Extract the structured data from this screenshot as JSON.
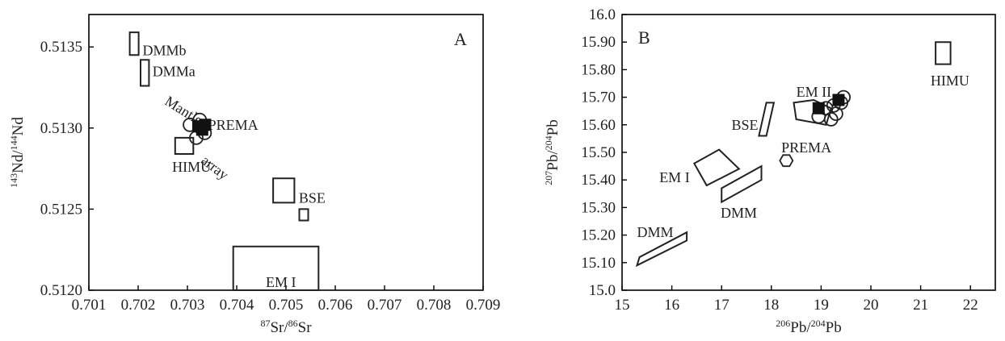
{
  "chart_data": [
    {
      "type": "scatter",
      "panel_label": "A",
      "xlabel": {
        "sup1": "87",
        "base1": "Sr/",
        "sup2": "86",
        "base2": "Sr"
      },
      "ylabel": {
        "sup1": "143",
        "base1": "Nd/",
        "sup2": "144",
        "base2": "Nd"
      },
      "xlim": [
        0.701,
        0.709
      ],
      "ylim": [
        0.512,
        0.5137
      ],
      "xticks": [
        "0.701",
        "0.702",
        "0.703",
        "0.704",
        "0.705",
        "0.706",
        "0.707",
        "0.708",
        "0.709"
      ],
      "yticks": [
        {
          "v": 0.512,
          "label": "0.5120"
        },
        {
          "v": 0.5125,
          "label": "0.5125"
        },
        {
          "v": 0.513,
          "label": "0.5130"
        },
        {
          "v": 0.5135,
          "label": "0.5135"
        }
      ],
      "fields": [
        {
          "name": "DMMb",
          "points": [
            [
              0.70183,
              0.51345
            ],
            [
              0.70201,
              0.51345
            ],
            [
              0.70201,
              0.51359
            ],
            [
              0.70183,
              0.51359
            ]
          ],
          "label": "DMMb",
          "label_at": [
            0.70209,
            0.51348
          ]
        },
        {
          "name": "DMMa",
          "points": [
            [
              0.70205,
              0.51326
            ],
            [
              0.70222,
              0.51326
            ],
            [
              0.70222,
              0.51342
            ],
            [
              0.70205,
              0.51342
            ]
          ],
          "label": "DMMa",
          "label_at": [
            0.70229,
            0.51335
          ]
        },
        {
          "name": "HIMU",
          "points": [
            [
              0.70275,
              0.51284
            ],
            [
              0.70312,
              0.51284
            ],
            [
              0.70312,
              0.51294
            ],
            [
              0.70275,
              0.51294
            ]
          ],
          "label": "HIMU",
          "label_at": [
            0.70269,
            0.51276
          ]
        },
        {
          "name": "BSE",
          "points": [
            [
              0.70474,
              0.51254
            ],
            [
              0.70517,
              0.51254
            ],
            [
              0.70517,
              0.51269
            ],
            [
              0.70474,
              0.51269
            ]
          ],
          "label": "BSE",
          "label_at": [
            0.70526,
            0.51257
          ]
        },
        {
          "name": "BSE-small",
          "points": [
            [
              0.70527,
              0.51243
            ],
            [
              0.70545,
              0.51243
            ],
            [
              0.70545,
              0.5125
            ],
            [
              0.70527,
              0.5125
            ]
          ],
          "label": "",
          "label_at": [
            0,
            0
          ]
        },
        {
          "name": "EM I",
          "points": [
            [
              0.70393,
              0.512
            ],
            [
              0.70566,
              0.512
            ],
            [
              0.70566,
              0.51227
            ],
            [
              0.70393,
              0.51227
            ]
          ],
          "label": "EM I",
          "label_at": [
            0.70459,
            0.51205
          ]
        }
      ],
      "annotations": [
        {
          "text": "PREMA",
          "at": [
            0.70342,
            0.51299
          ],
          "rotate": 0,
          "size": 18
        },
        {
          "text": "Mantle",
          "at": [
            0.70252,
            0.51315
          ],
          "rotate": 32,
          "size": 15
        },
        {
          "text": "array",
          "at": [
            0.70326,
            0.51279
          ],
          "rotate": 38,
          "size": 15
        }
      ],
      "open_circles": [
        [
          0.70305,
          0.51302
        ],
        [
          0.70325,
          0.51305
        ],
        [
          0.70318,
          0.51294
        ],
        [
          0.70335,
          0.51297
        ],
        [
          0.70328,
          0.513
        ]
      ],
      "filled_squares": [
        [
          0.70322,
          0.51301
        ],
        [
          0.70336,
          0.51302
        ],
        [
          0.7033,
          0.51299
        ]
      ]
    },
    {
      "type": "scatter",
      "panel_label": "B",
      "xlabel": {
        "sup1": "206",
        "base1": "Pb/",
        "sup2": "204",
        "base2": "Pb"
      },
      "ylabel": {
        "sup1": "207",
        "base1": "Pb/",
        "sup2": "204",
        "base2": "Pb"
      },
      "xlim": [
        15,
        22.5
      ],
      "ylim": [
        15.0,
        16.0
      ],
      "xticks": [
        "15",
        "16",
        "17",
        "18",
        "19",
        "20",
        "21",
        "22"
      ],
      "yticks": [
        {
          "v": 15.0,
          "label": "15.0"
        },
        {
          "v": 15.1,
          "label": "15.10"
        },
        {
          "v": 15.2,
          "label": "15.20"
        },
        {
          "v": 15.3,
          "label": "15.30"
        },
        {
          "v": 15.4,
          "label": "15.40"
        },
        {
          "v": 15.5,
          "label": "15.50"
        },
        {
          "v": 15.6,
          "label": "15.60"
        },
        {
          "v": 15.7,
          "label": "15.70"
        },
        {
          "v": 15.8,
          "label": "15.80"
        },
        {
          "v": 15.9,
          "label": "15.90"
        },
        {
          "v": 16.0,
          "label": "16.0"
        }
      ],
      "fields": [
        {
          "name": "DMM-low",
          "points": [
            [
              15.3,
              15.09
            ],
            [
              16.3,
              15.18
            ],
            [
              16.3,
              15.21
            ],
            [
              15.35,
              15.12
            ]
          ],
          "label": "DMM",
          "label_at": [
            15.3,
            15.21
          ]
        },
        {
          "name": "DMM",
          "points": [
            [
              17.0,
              15.32
            ],
            [
              17.8,
              15.4
            ],
            [
              17.8,
              15.45
            ],
            [
              17.0,
              15.37
            ]
          ],
          "label": "DMM",
          "label_at": [
            16.98,
            15.28
          ]
        },
        {
          "name": "EM I",
          "points": [
            [
              16.45,
              15.46
            ],
            [
              16.95,
              15.51
            ],
            [
              17.35,
              15.44
            ],
            [
              16.7,
              15.38
            ]
          ],
          "label": "EM I",
          "label_at": [
            15.75,
            15.41
          ]
        },
        {
          "name": "BSE",
          "points": [
            [
              17.75,
              15.56
            ],
            [
              17.9,
              15.56
            ],
            [
              18.05,
              15.68
            ],
            [
              17.9,
              15.68
            ]
          ],
          "label": "BSE",
          "label_at": [
            17.2,
            15.6
          ]
        },
        {
          "name": "EM II",
          "points": [
            [
              18.45,
              15.68
            ],
            [
              18.85,
              15.69
            ],
            [
              19.2,
              15.66
            ],
            [
              19.1,
              15.6
            ],
            [
              18.5,
              15.62
            ]
          ],
          "label": "EM II",
          "label_at": [
            18.5,
            15.72
          ]
        },
        {
          "name": "HIMU",
          "points": [
            [
              21.3,
              15.82
            ],
            [
              21.6,
              15.82
            ],
            [
              21.6,
              15.9
            ],
            [
              21.3,
              15.9
            ]
          ],
          "label": "HIMU",
          "label_at": [
            21.2,
            15.76
          ]
        }
      ],
      "annotations": [
        {
          "text": "PREMA",
          "at": [
            18.2,
            15.5
          ],
          "rotate": 0,
          "size": 18
        }
      ],
      "hexagons": [
        [
          18.3,
          15.47
        ]
      ],
      "open_circles": [
        [
          18.95,
          15.63
        ],
        [
          19.2,
          15.62
        ],
        [
          19.3,
          15.64
        ],
        [
          19.1,
          15.66
        ],
        [
          19.4,
          15.68
        ],
        [
          19.45,
          15.7
        ],
        [
          19.25,
          15.67
        ]
      ],
      "filled_squares": [
        [
          18.95,
          15.66
        ],
        [
          19.35,
          15.69
        ]
      ]
    }
  ]
}
